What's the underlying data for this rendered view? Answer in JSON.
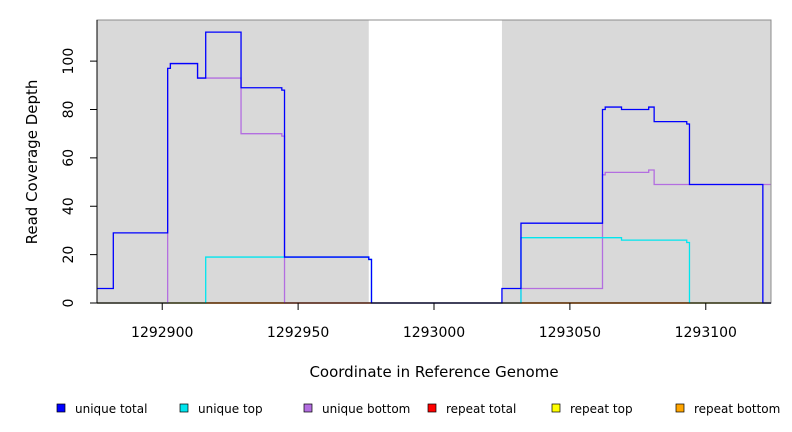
{
  "chart_data": {
    "type": "line",
    "title": "",
    "xlabel": "Coordinate in Reference Genome",
    "ylabel": "Read Coverage Depth",
    "xlim": [
      1292876,
      1293124
    ],
    "ylim": [
      0,
      117
    ],
    "x_ticks": [
      1292900,
      1292950,
      1293000,
      1293050,
      1293100
    ],
    "x_tick_labels": [
      "1292900",
      "1292950",
      "1293000",
      "1293050",
      "1293100"
    ],
    "y_ticks": [
      0,
      20,
      40,
      60,
      80,
      100
    ],
    "y_tick_labels": [
      "0",
      "20",
      "40",
      "60",
      "80",
      "100"
    ],
    "shaded_regions": [
      [
        1292876,
        1292976
      ],
      [
        1293025,
        1293124
      ]
    ],
    "legend_position": "bottom",
    "series": [
      {
        "name": "unique total",
        "color": "#0000ff",
        "x": [
          1292876,
          1292882,
          1292882,
          1292902,
          1292902,
          1292903,
          1292903,
          1292913,
          1292913,
          1292916,
          1292916,
          1292929,
          1292929,
          1292944,
          1292944,
          1292945,
          1292945,
          1292976,
          1292976,
          1292977,
          1292977,
          1293025,
          1293025,
          1293032,
          1293032,
          1293062,
          1293062,
          1293063,
          1293063,
          1293069,
          1293069,
          1293079,
          1293079,
          1293081,
          1293081,
          1293093,
          1293093,
          1293094,
          1293094,
          1293121,
          1293121,
          1293124
        ],
        "y": [
          6,
          6,
          29,
          29,
          97,
          97,
          99,
          99,
          93,
          93,
          112,
          112,
          89,
          89,
          88,
          88,
          19,
          19,
          18,
          18,
          0,
          0,
          6,
          6,
          33,
          33,
          80,
          80,
          81,
          81,
          80,
          80,
          81,
          81,
          75,
          75,
          74,
          74,
          49,
          49,
          0,
          0
        ]
      },
      {
        "name": "unique top",
        "color": "#00e5ee",
        "x": [
          1292876,
          1292916,
          1292916,
          1292976,
          1292976,
          1292977,
          1292977,
          1293032,
          1293032,
          1293069,
          1293069,
          1293093,
          1293093,
          1293094,
          1293094,
          1293124
        ],
        "y": [
          0,
          0,
          19,
          19,
          18,
          18,
          0,
          0,
          27,
          27,
          26,
          26,
          25,
          25,
          0,
          0
        ]
      },
      {
        "name": "unique bottom",
        "color": "#b36ee0",
        "x": [
          1292876,
          1292902,
          1292902,
          1292903,
          1292903,
          1292913,
          1292913,
          1292929,
          1292929,
          1292944,
          1292944,
          1292945,
          1292945,
          1293032,
          1293032,
          1293062,
          1293062,
          1293063,
          1293063,
          1293079,
          1293079,
          1293081,
          1293081,
          1293124
        ],
        "y": [
          0,
          0,
          97,
          97,
          99,
          99,
          93,
          93,
          70,
          70,
          69,
          69,
          0,
          0,
          6,
          6,
          53,
          53,
          54,
          54,
          55,
          55,
          49,
          49
        ]
      },
      {
        "name": "repeat total",
        "color": "#ff0000",
        "x": [
          1292876,
          1293124
        ],
        "y": [
          0,
          0
        ]
      },
      {
        "name": "repeat top",
        "color": "#ffff00",
        "x": [
          1292876,
          1293124
        ],
        "y": [
          0,
          0
        ]
      },
      {
        "name": "repeat bottom",
        "color": "#ffa500",
        "x": [
          1292876,
          1293124
        ],
        "y": [
          0,
          0
        ]
      }
    ],
    "colors": {
      "shade": "#d9d9d9",
      "background": "#ffffff"
    }
  }
}
